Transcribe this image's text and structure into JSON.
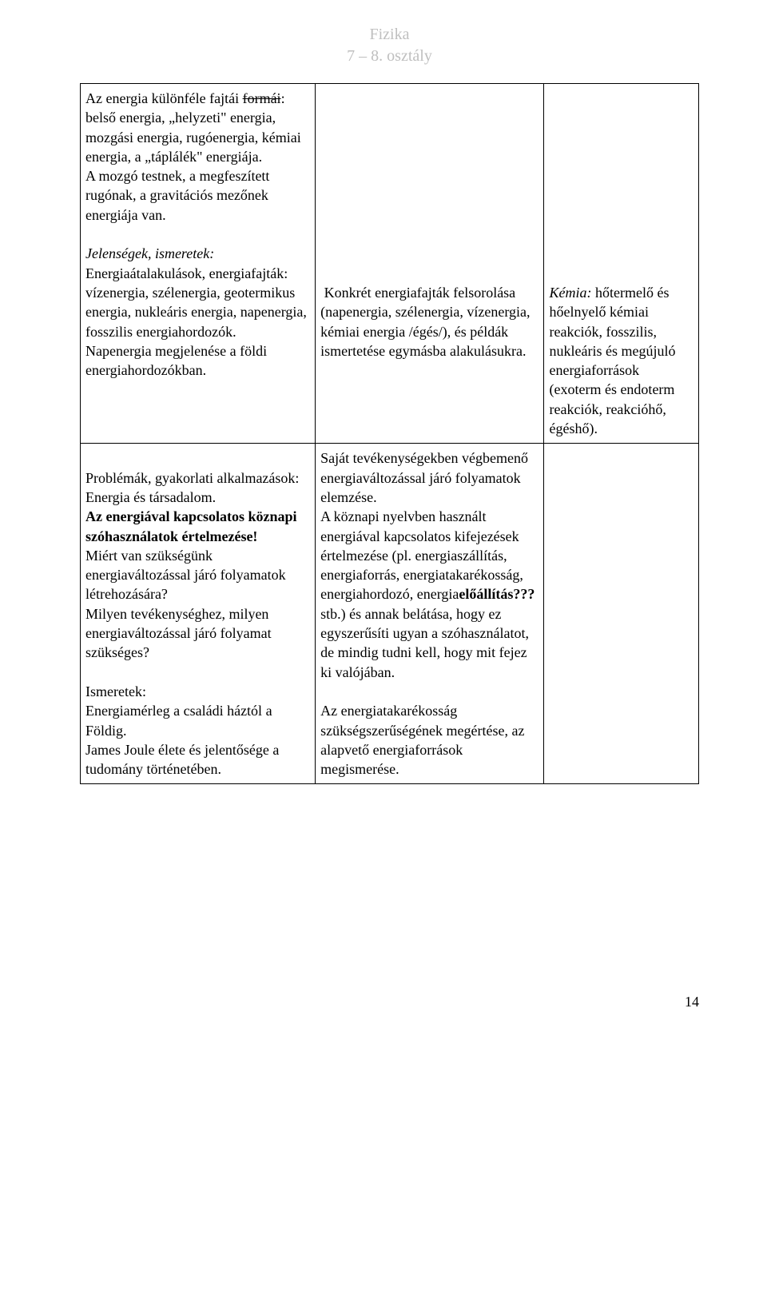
{
  "header": {
    "line1": "Fizika",
    "line2": "7 – 8. osztály"
  },
  "table": {
    "rows": [
      {
        "col1_parts": [
          {
            "text": "Az energia különféle fajtái ",
            "style": ""
          },
          {
            "text": "formái",
            "style": "strike"
          },
          {
            "text": ":\nbelső energia, „helyzeti\" energia, mozgási energia, rugóenergia, kémiai energia, a „táplálék\" energiája.\nA mozgó testnek, a megfeszített rugónak, a gravitációs mezőnek energiája van.\n",
            "style": ""
          },
          {
            "text": "\n",
            "style": ""
          },
          {
            "text": "Jelenségek, ismeretek:",
            "style": "italic"
          },
          {
            "text": "\nEnergiaátalakulások, energiafajták:\nvízenergia, szélenergia, geotermikus energia, nukleáris energia, napenergia, fosszilis energiahordozók.\nNapenergia megjelenése a földi energiahordozókban.",
            "style": ""
          }
        ],
        "col2_parts": [
          {
            "text": "\n\n\n\n\n\n\n\n\n\n Konkrét energiafajták felsorolása (napenergia, szélenergia, vízenergia, kémiai energia /égés/), és példák ismertetése egymásba alakulásukra.",
            "style": ""
          }
        ],
        "col3_parts": [
          {
            "text": "\n\n\n\n\n\n\n\n\n\n",
            "style": ""
          },
          {
            "text": "Kémia:",
            "style": "italic"
          },
          {
            "text": " hőtermelő és hőelnyelő kémiai reakciók, fosszilis, nukleáris és megújuló energiaforrások (exoterm és endoterm reakciók, reakcióhő, égéshő).",
            "style": ""
          }
        ]
      },
      {
        "col1_parts": [
          {
            "text": "\nProblémák, gyakorlati alkalmazások:\nEnergia és társadalom.\n",
            "style": ""
          },
          {
            "text": "Az energiával kapcsolatos köznapi szóhasználatok értelmezése!",
            "style": "bold"
          },
          {
            "text": "\nMiért van szükségünk energiaváltozással járó folyamatok létrehozására?\nMilyen tevékenységhez, milyen energiaváltozással járó folyamat szükséges?\n\nIsmeretek:\nEnergiamérleg a családi háztól a Földig.\nJames Joule élete és jelentősége a tudomány történetében.",
            "style": ""
          }
        ],
        "col2_parts": [
          {
            "text": "Saját tevékenységekben végbemenő energiaváltozással járó folyamatok elemzése.\nA köznapi nyelvben használt energiával kapcsolatos kifejezések értelmezése (pl. energiaszállítás, energiaforrás, energiatakarékosság, energiahordozó, energia",
            "style": ""
          },
          {
            "text": "előállítás???",
            "style": "bold"
          },
          {
            "text": " stb.) és annak belátása, hogy ez egyszerűsíti ugyan a szóhasználatot, de mindig tudni kell, hogy mit fejez ki valójában.\n\nAz energiatakarékosság szükségszerűségének megértése, az alapvető energiaforrások megismerése.",
            "style": ""
          }
        ],
        "col3_parts": []
      }
    ]
  },
  "page_number": "14"
}
